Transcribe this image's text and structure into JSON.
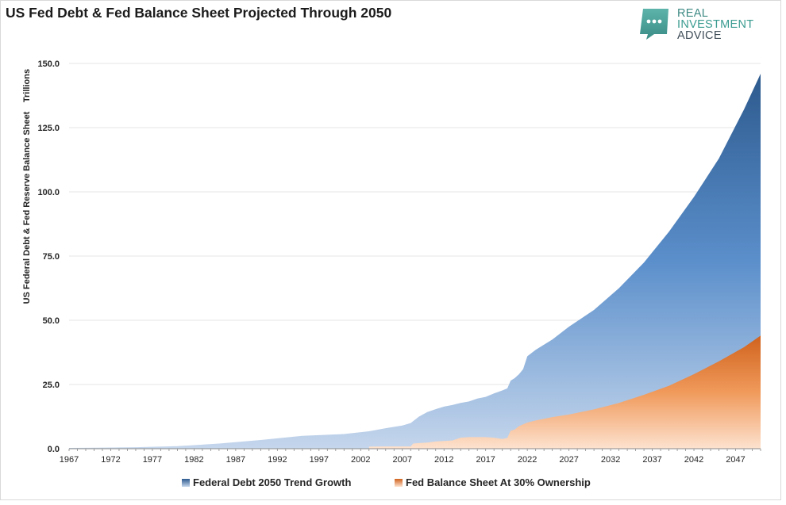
{
  "title": "US Fed Debt & Fed Balance Sheet Projected Through 2050",
  "brand": {
    "line1": "REAL",
    "line2": "INVESTMENT",
    "line3": "ADVICE",
    "icon": "speech-bubble-icon",
    "color": "#4fa39b"
  },
  "chart_data": {
    "type": "area",
    "title": "US Fed Debt & Fed Balance Sheet Projected Through 2050",
    "ylabel": "US Federal Debt & Fed Reserve Balance Sheet",
    "yunits": "Trillions",
    "xlabel": "",
    "xlim": [
      1967,
      2050
    ],
    "ylim": [
      0,
      150
    ],
    "y_ticks": [
      "0.0",
      "25.0",
      "50.0",
      "75.0",
      "100.0",
      "125.0",
      "150.0"
    ],
    "x_ticks": [
      "1967",
      "1972",
      "1977",
      "1982",
      "1987",
      "1992",
      "1997",
      "2002",
      "2007",
      "2012",
      "2017",
      "2022",
      "2027",
      "2032",
      "2037",
      "2042",
      "2047"
    ],
    "grid": true,
    "legend_position": "bottom",
    "series": [
      {
        "name": "Federal Debt 2050 Trend Growth",
        "color_top": "#2d5a8e",
        "color_mid": "#5b8fcb",
        "color_bottom": "#c5d6ec",
        "x": [
          1967,
          1970,
          1975,
          1980,
          1985,
          1990,
          1995,
          2000,
          2003,
          2005,
          2007,
          2008,
          2009,
          2010,
          2011,
          2012,
          2013,
          2014,
          2015,
          2016,
          2017,
          2018,
          2019,
          2019.6,
          2020,
          2020.5,
          2021,
          2021.5,
          2022,
          2023,
          2025,
          2027,
          2030,
          2033,
          2036,
          2039,
          2042,
          2045,
          2048,
          2050
        ],
        "values": [
          0.3,
          0.4,
          0.6,
          1.0,
          2.0,
          3.4,
          5.0,
          5.7,
          6.8,
          8.0,
          9.0,
          10.0,
          12.5,
          14.3,
          15.4,
          16.4,
          17.0,
          17.8,
          18.4,
          19.5,
          20.2,
          21.5,
          22.7,
          23.5,
          26.5,
          27.5,
          29.0,
          31.0,
          36.0,
          38.5,
          42.5,
          47.5,
          54.0,
          62.5,
          72.5,
          84.5,
          98.0,
          113.0,
          132.0,
          146.0
        ]
      },
      {
        "name": "Fed Balance Sheet At 30% Ownership",
        "color_top": "#d0621d",
        "color_mid": "#f09a5b",
        "color_bottom": "#fde2cf",
        "x": [
          2003,
          2005,
          2008,
          2008.3,
          2009,
          2010,
          2011,
          2012,
          2013,
          2014,
          2015,
          2016,
          2017,
          2018,
          2019,
          2019.6,
          2020,
          2020.5,
          2021,
          2022,
          2023,
          2025,
          2027,
          2030,
          2033,
          2036,
          2039,
          2042,
          2045,
          2048,
          2050
        ],
        "values": [
          0.8,
          0.9,
          0.9,
          2.0,
          2.2,
          2.4,
          2.8,
          3.0,
          3.2,
          4.3,
          4.5,
          4.5,
          4.5,
          4.3,
          3.8,
          4.2,
          7.0,
          7.5,
          8.8,
          10.2,
          11.0,
          12.3,
          13.3,
          15.3,
          17.8,
          21.0,
          24.5,
          29.0,
          34.0,
          39.5,
          44.0
        ]
      }
    ]
  }
}
